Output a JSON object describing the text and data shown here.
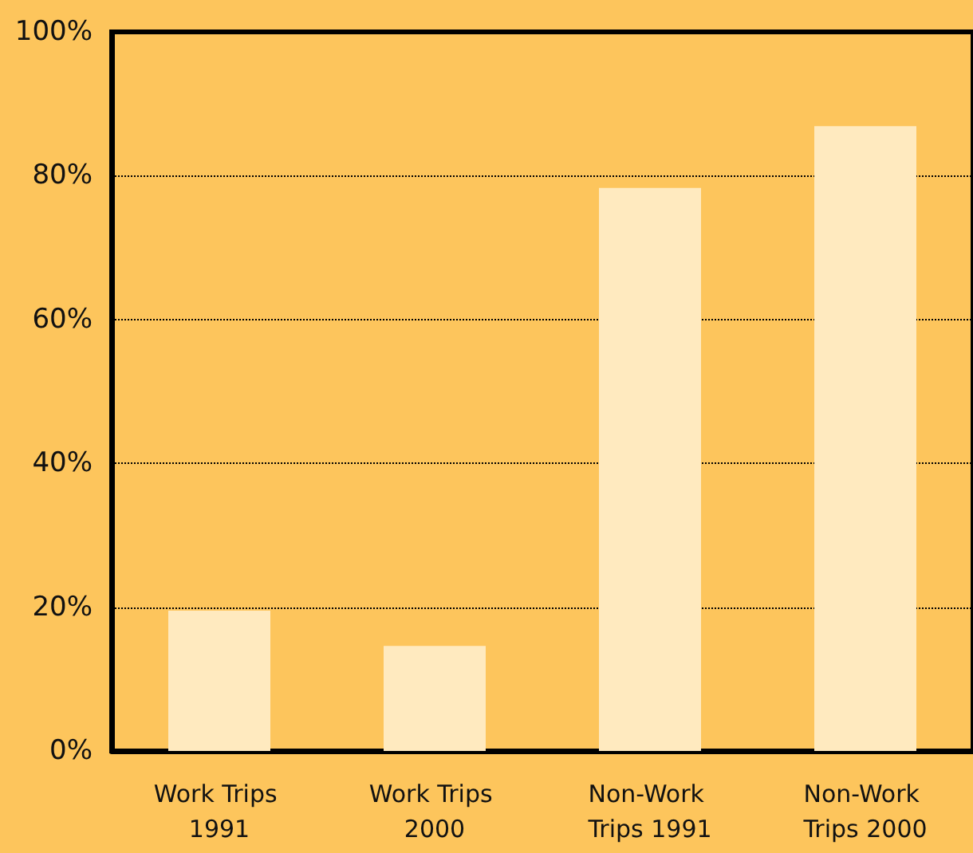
{
  "chart_data": {
    "type": "bar",
    "categories": [
      "Work Trips 1991",
      "Work Trips 2000",
      "Non-Work Trips 1991",
      "Non-Work Trips 2000"
    ],
    "values": [
      19.5,
      14.6,
      78.3,
      86.9
    ],
    "color": "#ffeabf",
    "ylim": [
      0,
      100
    ],
    "yticks": [
      {
        "value": 0,
        "label": "0%"
      },
      {
        "value": 20,
        "label": "20%"
      },
      {
        "value": 40,
        "label": "40%"
      },
      {
        "value": 60,
        "label": "60%"
      },
      {
        "value": 80,
        "label": "80%"
      },
      {
        "value": 100,
        "label": "100%"
      }
    ],
    "grid": "y"
  }
}
